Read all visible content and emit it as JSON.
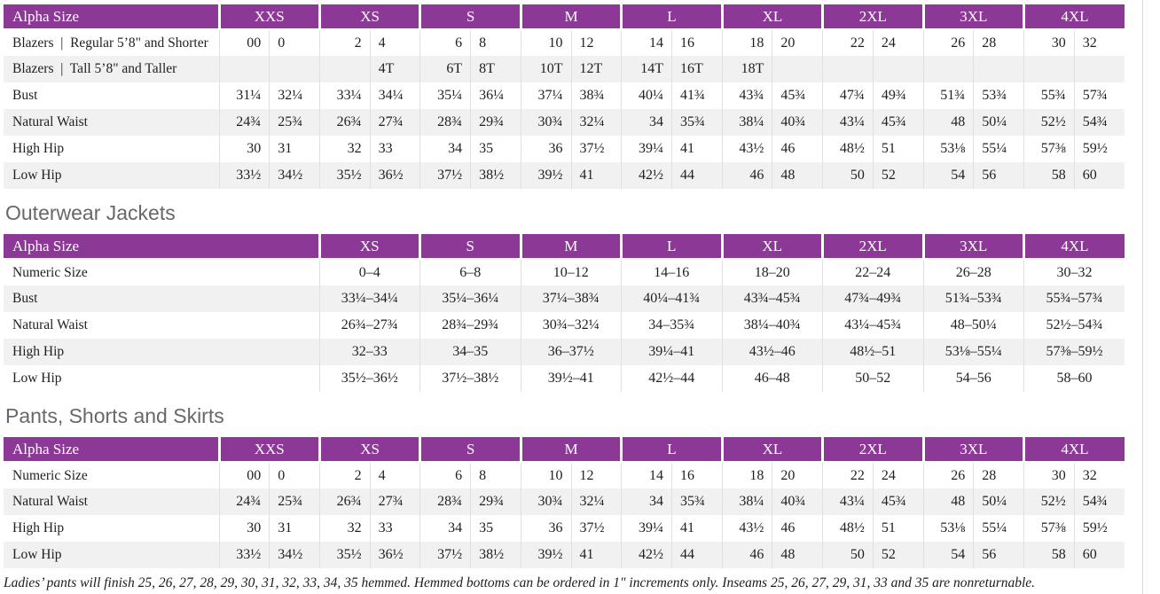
{
  "colors": {
    "header_purple": "#8c3896",
    "row_stripe": "#f2f1f2",
    "divider": "#e2dfe2",
    "heading_gray": "#686868"
  },
  "tables": {
    "blazers": {
      "header_label": "Alpha Size",
      "groups": [
        "XXS",
        "XS",
        "S",
        "M",
        "L",
        "XL",
        "2XL",
        "3XL",
        "4XL"
      ],
      "layout": "paired",
      "rows": [
        {
          "label": "Blazers  |  Regular 5’8\" and Shorter",
          "values": [
            "00",
            "0",
            "2",
            "4",
            "6",
            "8",
            "10",
            "12",
            "14",
            "16",
            "18",
            "20",
            "22",
            "24",
            "26",
            "28",
            "30",
            "32"
          ]
        },
        {
          "label": "Blazers  |  Tall 5’8\" and Taller",
          "values": [
            "",
            "",
            "",
            "4T",
            "6T",
            "8T",
            "10T",
            "12T",
            "14T",
            "16T",
            "18T",
            "",
            "",
            "",
            "",
            "",
            "",
            ""
          ]
        },
        {
          "label": "Bust",
          "values": [
            "31¼",
            "32¼",
            "33¼",
            "34¼",
            "35¼",
            "36¼",
            "37¼",
            "38¾",
            "40¼",
            "41¾",
            "43¾",
            "45¾",
            "47¾",
            "49¾",
            "51¾",
            "53¾",
            "55¾",
            "57¾"
          ]
        },
        {
          "label": "Natural Waist",
          "values": [
            "24¾",
            "25¾",
            "26¾",
            "27¾",
            "28¾",
            "29¾",
            "30¾",
            "32¼",
            "34",
            "35¾",
            "38¼",
            "40¾",
            "43¼",
            "45¾",
            "48",
            "50¼",
            "52½",
            "54¾"
          ]
        },
        {
          "label": "High Hip",
          "values": [
            "30",
            "31",
            "32",
            "33",
            "34",
            "35",
            "36",
            "37½",
            "39¼",
            "41",
            "43½",
            "46",
            "48½",
            "51",
            "53⅛",
            "55¼",
            "57⅜",
            "59½"
          ]
        },
        {
          "label": "Low Hip",
          "values": [
            "33½",
            "34½",
            "35½",
            "36½",
            "37½",
            "38½",
            "39½",
            "41",
            "42½",
            "44",
            "46",
            "48",
            "50",
            "52",
            "54",
            "56",
            "58",
            "60"
          ]
        }
      ]
    },
    "outerwear": {
      "heading": "Outerwear Jackets",
      "header_label": "Alpha Size",
      "groups": [
        "XS",
        "S",
        "M",
        "L",
        "XL",
        "2XL",
        "3XL",
        "4XL"
      ],
      "layout": "single",
      "rows": [
        {
          "label": "Numeric Size",
          "values": [
            "0–4",
            "6–8",
            "10–12",
            "14–16",
            "18–20",
            "22–24",
            "26–28",
            "30–32"
          ]
        },
        {
          "label": "Bust",
          "values": [
            "33¼–34¼",
            "35¼–36¼",
            "37¼–38¾",
            "40¼–41¾",
            "43¾–45¾",
            "47¾–49¾",
            "51¾–53¾",
            "55¾–57¾"
          ]
        },
        {
          "label": "Natural Waist",
          "values": [
            "26¾–27¾",
            "28¾–29¾",
            "30¾–32¼",
            "34–35¾",
            "38¼–40¾",
            "43¼–45¾",
            "48–50¼",
            "52½–54¾"
          ]
        },
        {
          "label": "High Hip",
          "values": [
            "32–33",
            "34–35",
            "36–37½",
            "39¼–41",
            "43½–46",
            "48½–51",
            "53⅛–55¼",
            "57⅜–59½"
          ]
        },
        {
          "label": "Low Hip",
          "values": [
            "35½–36½",
            "37½–38½",
            "39½–41",
            "42½–44",
            "46–48",
            "50–52",
            "54–56",
            "58–60"
          ]
        }
      ]
    },
    "pants": {
      "heading": "Pants, Shorts and Skirts",
      "header_label": "Alpha Size",
      "groups": [
        "XXS",
        "XS",
        "S",
        "M",
        "L",
        "XL",
        "2XL",
        "3XL",
        "4XL"
      ],
      "layout": "paired",
      "rows": [
        {
          "label": "Numeric Size",
          "values": [
            "00",
            "0",
            "2",
            "4",
            "6",
            "8",
            "10",
            "12",
            "14",
            "16",
            "18",
            "20",
            "22",
            "24",
            "26",
            "28",
            "30",
            "32"
          ]
        },
        {
          "label": "Natural Waist",
          "values": [
            "24¾",
            "25¾",
            "26¾",
            "27¾",
            "28¾",
            "29¾",
            "30¾",
            "32¼",
            "34",
            "35¾",
            "38¼",
            "40¾",
            "43¼",
            "45¾",
            "48",
            "50¼",
            "52½",
            "54¾"
          ]
        },
        {
          "label": "High Hip",
          "values": [
            "30",
            "31",
            "32",
            "33",
            "34",
            "35",
            "36",
            "37½",
            "39¼",
            "41",
            "43½",
            "46",
            "48½",
            "51",
            "53⅛",
            "55¼",
            "57⅜",
            "59½"
          ]
        },
        {
          "label": "Low Hip",
          "values": [
            "33½",
            "34½",
            "35½",
            "36½",
            "37½",
            "38½",
            "39½",
            "41",
            "42½",
            "44",
            "46",
            "48",
            "50",
            "52",
            "54",
            "56",
            "58",
            "60"
          ]
        }
      ]
    }
  },
  "footnote": "Ladies’ pants will finish 25, 26, 27, 28, 29, 30, 31, 32, 33, 34, 35 hemmed. Hemmed bottoms can be ordered in 1\" increments only. Inseams 25, 26, 27, 29, 31, 33 and 35 are nonreturnable."
}
